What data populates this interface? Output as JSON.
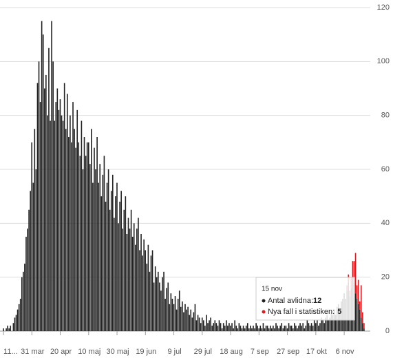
{
  "chart_data": {
    "type": "bar",
    "stacked": true,
    "grid": true,
    "ylim": [
      0,
      120
    ],
    "yticks": [
      0,
      20,
      40,
      60,
      80,
      100,
      120
    ],
    "categories": [
      "11...",
      null,
      null,
      null,
      null,
      null,
      null,
      null,
      null,
      null,
      null,
      null,
      null,
      null,
      null,
      null,
      null,
      null,
      null,
      null,
      "31 mar",
      null,
      null,
      null,
      null,
      null,
      null,
      null,
      null,
      null,
      null,
      null,
      null,
      null,
      null,
      null,
      null,
      null,
      null,
      null,
      "20 apr",
      null,
      null,
      null,
      null,
      null,
      null,
      null,
      null,
      null,
      null,
      null,
      null,
      null,
      null,
      null,
      null,
      null,
      null,
      null,
      "10 maj",
      null,
      null,
      null,
      null,
      null,
      null,
      null,
      null,
      null,
      null,
      null,
      null,
      null,
      null,
      null,
      null,
      null,
      null,
      null,
      "30 maj",
      null,
      null,
      null,
      null,
      null,
      null,
      null,
      null,
      null,
      null,
      null,
      null,
      null,
      null,
      null,
      null,
      null,
      null,
      null,
      "19 jun",
      null,
      null,
      null,
      null,
      null,
      null,
      null,
      null,
      null,
      null,
      null,
      null,
      null,
      null,
      null,
      null,
      null,
      null,
      null,
      "9 jul",
      null,
      null,
      null,
      null,
      null,
      null,
      null,
      null,
      null,
      null,
      null,
      null,
      null,
      null,
      null,
      null,
      null,
      null,
      null,
      "29 jul",
      null,
      null,
      null,
      null,
      null,
      null,
      null,
      null,
      null,
      null,
      null,
      null,
      null,
      null,
      null,
      null,
      null,
      null,
      null,
      "18 aug",
      null,
      null,
      null,
      null,
      null,
      null,
      null,
      null,
      null,
      null,
      null,
      null,
      null,
      null,
      null,
      null,
      null,
      null,
      null,
      "7 sep",
      null,
      null,
      null,
      null,
      null,
      null,
      null,
      null,
      null,
      null,
      null,
      null,
      null,
      null,
      null,
      null,
      null,
      null,
      null,
      "27 sep",
      null,
      null,
      null,
      null,
      null,
      null,
      null,
      null,
      null,
      null,
      null,
      null,
      null,
      null,
      null,
      null,
      null,
      null,
      null,
      "17 okt",
      null,
      null,
      null,
      null,
      null,
      null,
      null,
      null,
      null,
      null,
      null,
      null,
      null,
      null,
      null,
      null,
      null,
      null,
      null,
      "6 nov",
      null,
      null,
      null,
      null,
      null,
      null,
      null,
      null,
      "15 nov",
      null,
      null,
      null,
      null,
      null
    ],
    "series": [
      {
        "name": "Antal avlidna",
        "color": "#222222",
        "values": [
          1,
          0,
          1,
          2,
          1,
          2,
          0,
          3,
          5,
          6,
          8,
          10,
          12,
          20,
          22,
          25,
          35,
          38,
          45,
          52,
          70,
          55,
          75,
          60,
          92,
          100,
          85,
          115,
          110,
          90,
          95,
          80,
          105,
          78,
          115,
          100,
          78,
          85,
          90,
          82,
          86,
          80,
          78,
          92,
          75,
          88,
          72,
          80,
          70,
          85,
          75,
          68,
          82,
          70,
          65,
          78,
          60,
          72,
          65,
          70,
          70,
          62,
          75,
          55,
          68,
          60,
          72,
          55,
          62,
          50,
          58,
          65,
          48,
          55,
          60,
          45,
          52,
          58,
          42,
          50,
          55,
          40,
          48,
          52,
          38,
          45,
          50,
          36,
          42,
          38,
          45,
          35,
          40,
          32,
          38,
          42,
          30,
          36,
          28,
          34,
          30,
          25,
          32,
          22,
          28,
          30,
          18,
          24,
          20,
          22,
          18,
          15,
          20,
          22,
          12,
          16,
          18,
          10,
          14,
          12,
          10,
          13,
          8,
          12,
          15,
          9,
          11,
          7,
          10,
          8,
          9,
          6,
          8,
          5,
          7,
          10,
          4,
          6,
          5,
          3,
          5,
          4,
          2,
          6,
          3,
          4,
          5,
          2,
          3,
          4,
          3,
          2,
          4,
          3,
          1,
          3,
          2,
          4,
          2,
          3,
          2,
          3,
          1,
          4,
          2,
          1,
          3,
          2,
          1,
          2,
          1,
          2,
          3,
          1,
          2,
          1,
          2,
          1,
          3,
          2,
          1,
          2,
          1,
          3,
          1,
          2,
          2,
          1,
          2,
          1,
          2,
          1,
          3,
          2,
          1,
          2,
          3,
          1,
          2,
          2,
          1,
          3,
          2,
          2,
          1,
          3,
          2,
          1,
          2,
          3,
          2,
          3,
          1,
          2,
          4,
          3,
          2,
          3,
          2,
          4,
          3,
          4,
          2,
          3,
          5,
          4,
          3,
          5,
          6,
          4,
          5,
          7,
          6,
          8,
          6,
          9,
          10,
          8,
          11,
          12,
          14,
          12,
          15,
          18,
          13,
          16,
          20,
          18,
          14,
          12,
          10,
          8,
          5,
          3,
          1
        ]
      },
      {
        "name": "Nya fall i statistiken",
        "color": "#e0191e",
        "values": [
          0,
          0,
          0,
          0,
          0,
          0,
          0,
          0,
          0,
          0,
          0,
          0,
          0,
          0,
          0,
          0,
          0,
          0,
          0,
          0,
          0,
          0,
          0,
          0,
          0,
          0,
          0,
          0,
          0,
          0,
          0,
          0,
          0,
          0,
          0,
          0,
          0,
          0,
          0,
          0,
          0,
          0,
          0,
          0,
          0,
          0,
          0,
          0,
          0,
          0,
          0,
          0,
          0,
          0,
          0,
          0,
          0,
          0,
          0,
          0,
          0,
          0,
          0,
          0,
          0,
          0,
          0,
          0,
          0,
          0,
          0,
          0,
          0,
          0,
          0,
          0,
          0,
          0,
          0,
          0,
          0,
          0,
          0,
          0,
          0,
          0,
          0,
          0,
          0,
          0,
          0,
          0,
          0,
          0,
          0,
          0,
          0,
          0,
          0,
          0,
          0,
          0,
          0,
          0,
          0,
          0,
          0,
          0,
          0,
          0,
          0,
          0,
          0,
          0,
          0,
          0,
          0,
          0,
          0,
          0,
          0,
          0,
          0,
          0,
          0,
          0,
          0,
          0,
          0,
          0,
          0,
          0,
          0,
          0,
          0,
          0,
          0,
          0,
          0,
          0,
          0,
          0,
          0,
          0,
          0,
          0,
          0,
          0,
          0,
          0,
          0,
          0,
          0,
          0,
          0,
          0,
          0,
          0,
          0,
          0,
          0,
          0,
          0,
          0,
          0,
          0,
          0,
          0,
          0,
          0,
          0,
          0,
          0,
          0,
          0,
          0,
          0,
          0,
          0,
          0,
          0,
          0,
          0,
          0,
          0,
          0,
          0,
          0,
          0,
          0,
          0,
          0,
          0,
          0,
          0,
          0,
          0,
          0,
          0,
          0,
          0,
          0,
          0,
          0,
          0,
          0,
          0,
          0,
          0,
          0,
          0,
          0,
          0,
          0,
          0,
          0,
          0,
          0,
          0,
          0,
          0,
          0,
          0,
          0,
          0,
          0,
          0,
          0,
          0,
          0,
          0,
          0,
          0,
          0,
          0,
          0,
          0,
          0,
          0,
          0,
          0,
          0,
          2,
          3,
          2,
          4,
          6,
          8,
          15,
          5,
          9,
          3,
          12,
          4,
          2
        ]
      }
    ]
  }
}
